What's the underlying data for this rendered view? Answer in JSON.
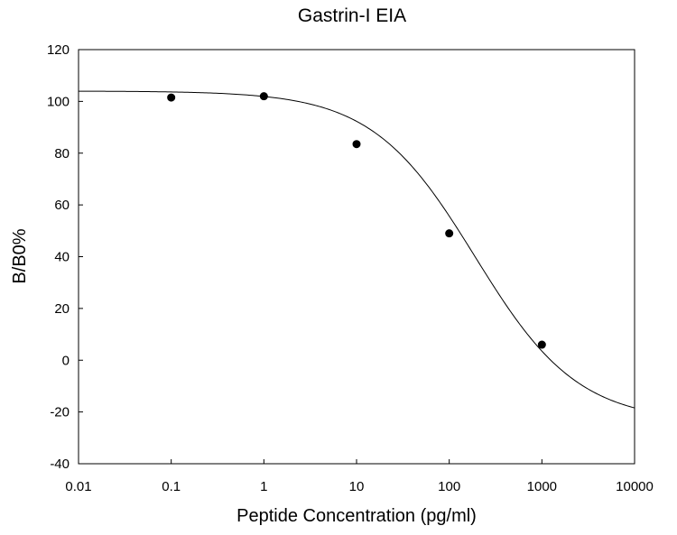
{
  "chart_data": {
    "type": "scatter",
    "title": "Gastrin-I EIA",
    "xlabel": "Peptide Concentration (pg/ml)",
    "ylabel": "B/B0%",
    "x_scale": "log",
    "xlim": [
      0.01,
      10000
    ],
    "ylim": [
      -40,
      120
    ],
    "x_ticks": [
      0.01,
      0.1,
      1,
      10,
      100,
      1000,
      10000
    ],
    "x_tick_labels": [
      "0.01",
      "0.1",
      "1",
      "10",
      "100",
      "1000",
      "10000"
    ],
    "y_ticks": [
      -40,
      -20,
      0,
      20,
      40,
      60,
      80,
      100,
      120
    ],
    "y_tick_labels": [
      "-40",
      "-20",
      "0",
      "20",
      "40",
      "60",
      "80",
      "100",
      "120"
    ],
    "grid": false,
    "series": [
      {
        "kind": "points",
        "x": [
          0.1,
          1,
          10,
          100,
          1000
        ],
        "y": [
          101.5,
          102,
          83.5,
          49,
          6
        ],
        "color": "#000000"
      },
      {
        "kind": "fitted-curve",
        "model": "4PL",
        "top": 104,
        "bottom": -24,
        "ec50": 190,
        "hill": 0.78,
        "color": "#000000"
      }
    ]
  }
}
